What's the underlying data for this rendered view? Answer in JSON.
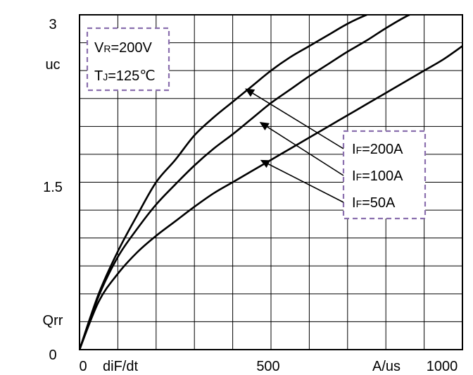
{
  "chart_data": {
    "type": "line",
    "title": "",
    "xlabel": "diF/dt",
    "xunit": "A/us",
    "ylabel": "Qrr",
    "yunit": "uc",
    "xlim": [
      0,
      1000
    ],
    "ylim": [
      0,
      3
    ],
    "grid": true,
    "x_tick_labels": [
      "0",
      "500",
      "1000"
    ],
    "y_tick_labels": [
      "0",
      "1.5",
      "3"
    ],
    "conditions": [
      {
        "main": "V",
        "sub": "R",
        "rest": "=200V"
      },
      {
        "main": "T",
        "sub": "J",
        "rest": "=125℃"
      }
    ],
    "series": [
      {
        "name": "IF=200A",
        "label": {
          "main": "I",
          "sub": "F",
          "rest": "=200A"
        },
        "x": [
          0,
          50,
          100,
          150,
          200,
          250,
          300,
          350,
          400,
          450,
          500,
          550,
          600,
          650,
          700,
          750,
          800,
          850
        ],
        "y": [
          0,
          0.5,
          0.88,
          1.2,
          1.5,
          1.7,
          1.92,
          2.08,
          2.22,
          2.36,
          2.5,
          2.62,
          2.72,
          2.82,
          2.92,
          3.0,
          3.06,
          3.12
        ],
        "pointer_at": {
          "x": 432,
          "y": 2.34
        }
      },
      {
        "name": "IF=100A",
        "label": {
          "main": "I",
          "sub": "F",
          "rest": "=100A"
        },
        "x": [
          0,
          50,
          100,
          150,
          200,
          250,
          300,
          350,
          400,
          450,
          500,
          550,
          600,
          650,
          700,
          750,
          800,
          850,
          900
        ],
        "y": [
          0,
          0.48,
          0.83,
          1.08,
          1.3,
          1.48,
          1.65,
          1.8,
          1.93,
          2.07,
          2.21,
          2.33,
          2.45,
          2.56,
          2.67,
          2.77,
          2.88,
          2.98,
          3.06
        ],
        "pointer_at": {
          "x": 470,
          "y": 2.04
        }
      },
      {
        "name": "IF=50A",
        "label": {
          "main": "I",
          "sub": "F",
          "rest": "=50A"
        },
        "x": [
          0,
          50,
          100,
          150,
          200,
          250,
          300,
          350,
          400,
          450,
          500,
          550,
          600,
          650,
          700,
          750,
          800,
          850,
          900,
          950,
          1000
        ],
        "y": [
          0,
          0.43,
          0.68,
          0.87,
          1.02,
          1.15,
          1.28,
          1.4,
          1.5,
          1.6,
          1.7,
          1.8,
          1.9,
          2.0,
          2.1,
          2.2,
          2.3,
          2.4,
          2.5,
          2.6,
          2.72
        ],
        "pointer_at": {
          "x": 472,
          "y": 1.7
        }
      }
    ]
  }
}
